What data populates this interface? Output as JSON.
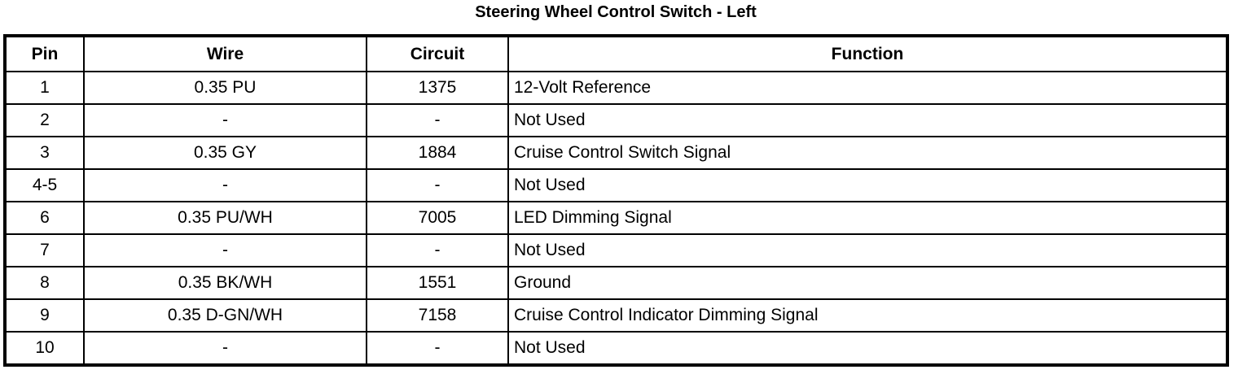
{
  "title": "Steering Wheel Control Switch - Left",
  "columns": [
    "Pin",
    "Wire",
    "Circuit",
    "Function"
  ],
  "rows": [
    [
      "1",
      "0.35 PU",
      "1375",
      "12-Volt Reference"
    ],
    [
      "2",
      "-",
      "-",
      "Not Used"
    ],
    [
      "3",
      "0.35 GY",
      "1884",
      "Cruise Control Switch Signal"
    ],
    [
      "4-5",
      "-",
      "-",
      "Not Used"
    ],
    [
      "6",
      "0.35 PU/WH",
      "7005",
      "LED Dimming Signal"
    ],
    [
      "7",
      "-",
      "-",
      "Not Used"
    ],
    [
      "8",
      "0.35 BK/WH",
      "1551",
      "Ground"
    ],
    [
      "9",
      "0.35 D-GN/WH",
      "7158",
      "Cruise Control Indicator Dimming Signal"
    ],
    [
      "10",
      "-",
      "-",
      "Not Used"
    ]
  ]
}
